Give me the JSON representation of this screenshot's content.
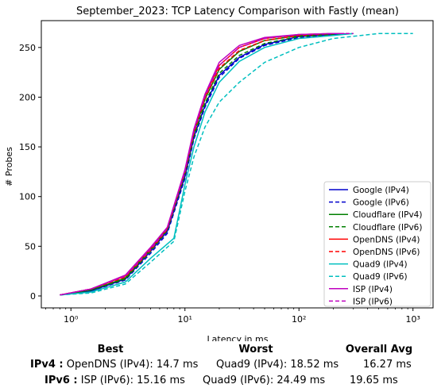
{
  "chart_data": {
    "type": "line",
    "title": "September_2023: TCP Latency Comparison with Fastly (mean)",
    "xlabel": "Latency in ms",
    "ylabel": "# Probes",
    "xscale": "log",
    "xlim": [
      0.55,
      1500
    ],
    "ylim": [
      -12,
      277
    ],
    "x_ticks": [
      1,
      10,
      100,
      1000
    ],
    "x_tick_labels": [
      "10⁰",
      "10¹",
      "10²",
      "10³"
    ],
    "y_ticks": [
      0,
      50,
      100,
      150,
      200,
      250
    ],
    "legend_position": "lower right",
    "grid": false,
    "series": [
      {
        "name": "Google (IPv4)",
        "color": "#0000cc",
        "dash": "solid",
        "x": [
          0.8,
          1.5,
          3,
          5,
          7,
          10,
          12,
          15,
          20,
          30,
          50,
          100,
          200,
          250
        ],
        "y": [
          1,
          5,
          17,
          45,
          65,
          120,
          160,
          192,
          222,
          240,
          253,
          261,
          263,
          264
        ]
      },
      {
        "name": "Google (IPv6)",
        "color": "#0000cc",
        "dash": "dashed",
        "x": [
          0.8,
          1.5,
          3,
          5,
          7,
          10,
          12,
          15,
          20,
          30,
          50,
          100,
          200,
          300
        ],
        "y": [
          1,
          5,
          16,
          43,
          63,
          118,
          158,
          190,
          220,
          239,
          252,
          260,
          263,
          264
        ]
      },
      {
        "name": "Cloudflare (IPv4)",
        "color": "#007f00",
        "dash": "solid",
        "x": [
          0.8,
          1.5,
          3,
          5,
          7,
          10,
          12,
          15,
          20,
          30,
          50,
          100,
          200,
          250
        ],
        "y": [
          1,
          6,
          18,
          47,
          67,
          124,
          164,
          198,
          228,
          246,
          257,
          262,
          264,
          264
        ]
      },
      {
        "name": "Cloudflare (IPv6)",
        "color": "#007f00",
        "dash": "dashed",
        "x": [
          0.8,
          1.5,
          3,
          5,
          7,
          10,
          12,
          15,
          20,
          30,
          50,
          100,
          200,
          250
        ],
        "y": [
          1,
          6,
          17,
          45,
          66,
          122,
          161,
          194,
          224,
          242,
          254,
          261,
          263,
          264
        ]
      },
      {
        "name": "OpenDNS (IPv4)",
        "color": "#ff0000",
        "dash": "solid",
        "x": [
          0.8,
          1.5,
          3,
          5,
          7,
          10,
          12,
          15,
          20,
          30,
          50,
          100,
          200,
          250
        ],
        "y": [
          1,
          7,
          20,
          48,
          68,
          126,
          166,
          201,
          232,
          250,
          259,
          263,
          264,
          264
        ]
      },
      {
        "name": "OpenDNS (IPv6)",
        "color": "#ff0000",
        "dash": "dashed",
        "x": [
          0.8,
          1.5,
          3,
          5,
          7,
          10,
          12,
          15,
          20,
          30,
          50,
          100,
          200,
          250
        ],
        "y": [
          1,
          7,
          19,
          46,
          67,
          124,
          164,
          199,
          229,
          247,
          257,
          262,
          264,
          264
        ]
      },
      {
        "name": "Quad9 (IPv4)",
        "color": "#00bfbf",
        "dash": "solid",
        "x": [
          0.8,
          1.5,
          3,
          5,
          8,
          10,
          12,
          15,
          20,
          30,
          50,
          100,
          200,
          300
        ],
        "y": [
          1,
          4,
          14,
          38,
          58,
          112,
          150,
          185,
          215,
          236,
          250,
          259,
          262,
          264
        ]
      },
      {
        "name": "Quad9 (IPv6)",
        "color": "#00bfbf",
        "dash": "dashed",
        "x": [
          0.8,
          1.5,
          3,
          5,
          8,
          10,
          12,
          15,
          20,
          30,
          50,
          100,
          200,
          500,
          1000
        ],
        "y": [
          1,
          3,
          12,
          34,
          55,
          105,
          140,
          170,
          195,
          215,
          235,
          250,
          259,
          264,
          264
        ]
      },
      {
        "name": "ISP (IPv4)",
        "color": "#bf00bf",
        "dash": "solid",
        "x": [
          0.8,
          1.5,
          3,
          5,
          7,
          10,
          12,
          15,
          20,
          30,
          50,
          100,
          200,
          250
        ],
        "y": [
          1,
          7,
          21,
          49,
          69,
          127,
          168,
          203,
          235,
          252,
          260,
          263,
          264,
          264
        ]
      },
      {
        "name": "ISP (IPv6)",
        "color": "#bf00bf",
        "dash": "dashed",
        "x": [
          0.8,
          1.5,
          3,
          5,
          7,
          10,
          12,
          15,
          20,
          30,
          50,
          100,
          200,
          300
        ],
        "y": [
          1,
          7,
          20,
          47,
          68,
          125,
          166,
          201,
          232,
          250,
          259,
          263,
          264,
          264
        ]
      }
    ]
  },
  "stats": {
    "headers": {
      "best": "Best",
      "worst": "Worst",
      "avg": "Overall Avg"
    },
    "ipv4": {
      "label": "IPv4 :",
      "best": "OpenDNS (IPv4): 14.7 ms",
      "worst": "Quad9 (IPv4): 18.52 ms",
      "avg": "16.27 ms"
    },
    "ipv6": {
      "label": "IPv6 :",
      "best": "ISP (IPv6): 15.16 ms",
      "worst": "Quad9 (IPv6): 24.49 ms",
      "avg": "19.65 ms"
    }
  }
}
